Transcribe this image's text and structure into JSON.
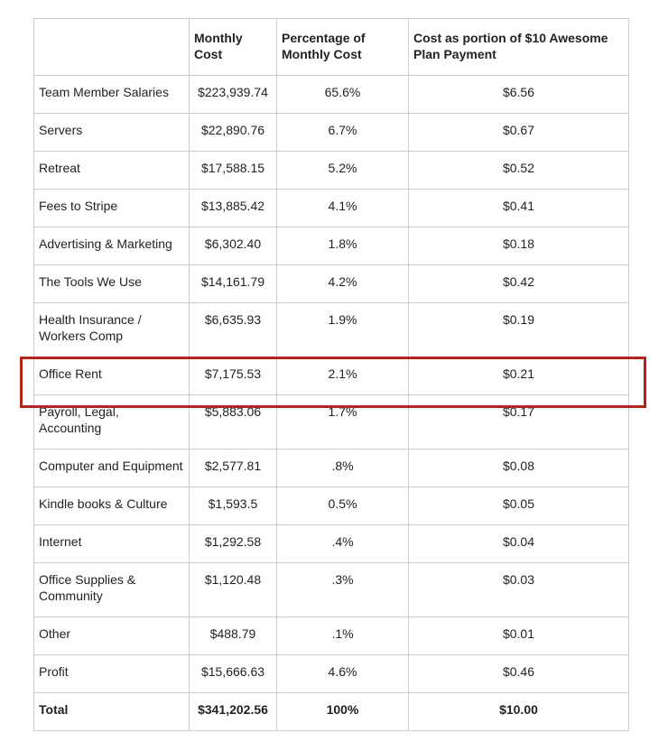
{
  "table": {
    "header": [
      "",
      "Monthly Cost",
      "Percentage of Monthly Cost",
      "Cost as portion of $10 Awesome Plan Payment"
    ],
    "rows": [
      [
        "Team Member Salaries",
        "$223,939.74",
        "65.6%",
        "$6.56"
      ],
      [
        "Servers",
        "$22,890.76",
        "6.7%",
        "$0.67"
      ],
      [
        "Retreat",
        "$17,588.15",
        "5.2%",
        "$0.52"
      ],
      [
        "Fees to Stripe",
        "$13,885.42",
        "4.1%",
        "$0.41"
      ],
      [
        "Advertising & Marketing",
        "$6,302.40",
        "1.8%",
        "$0.18"
      ],
      [
        "The Tools We Use",
        "$14,161.79",
        "4.2%",
        "$0.42"
      ],
      [
        "Health Insurance / Workers Comp",
        "$6,635.93",
        "1.9%",
        "$0.19"
      ],
      [
        "Office Rent",
        "$7,175.53",
        "2.1%",
        "$0.21"
      ],
      [
        "Payroll, Legal, Accounting",
        "$5,883.06",
        "1.7%",
        "$0.17"
      ],
      [
        "Computer and Equipment",
        "$2,577.81",
        ".8%",
        "$0.08"
      ],
      [
        "Kindle books & Culture",
        "$1,593.5",
        "0.5%",
        "$0.05"
      ],
      [
        "Internet",
        "$1,292.58",
        ".4%",
        "$0.04"
      ],
      [
        "Office Supplies & Community",
        "$1,120.48",
        ".3%",
        "$0.03"
      ],
      [
        "Other",
        "$488.79",
        ".1%",
        "$0.01"
      ],
      [
        "Profit",
        "$15,666.63",
        "4.6%",
        "$0.46"
      ]
    ],
    "total": [
      "Total",
      "$341,202.56",
      "100%",
      "$10.00"
    ]
  }
}
